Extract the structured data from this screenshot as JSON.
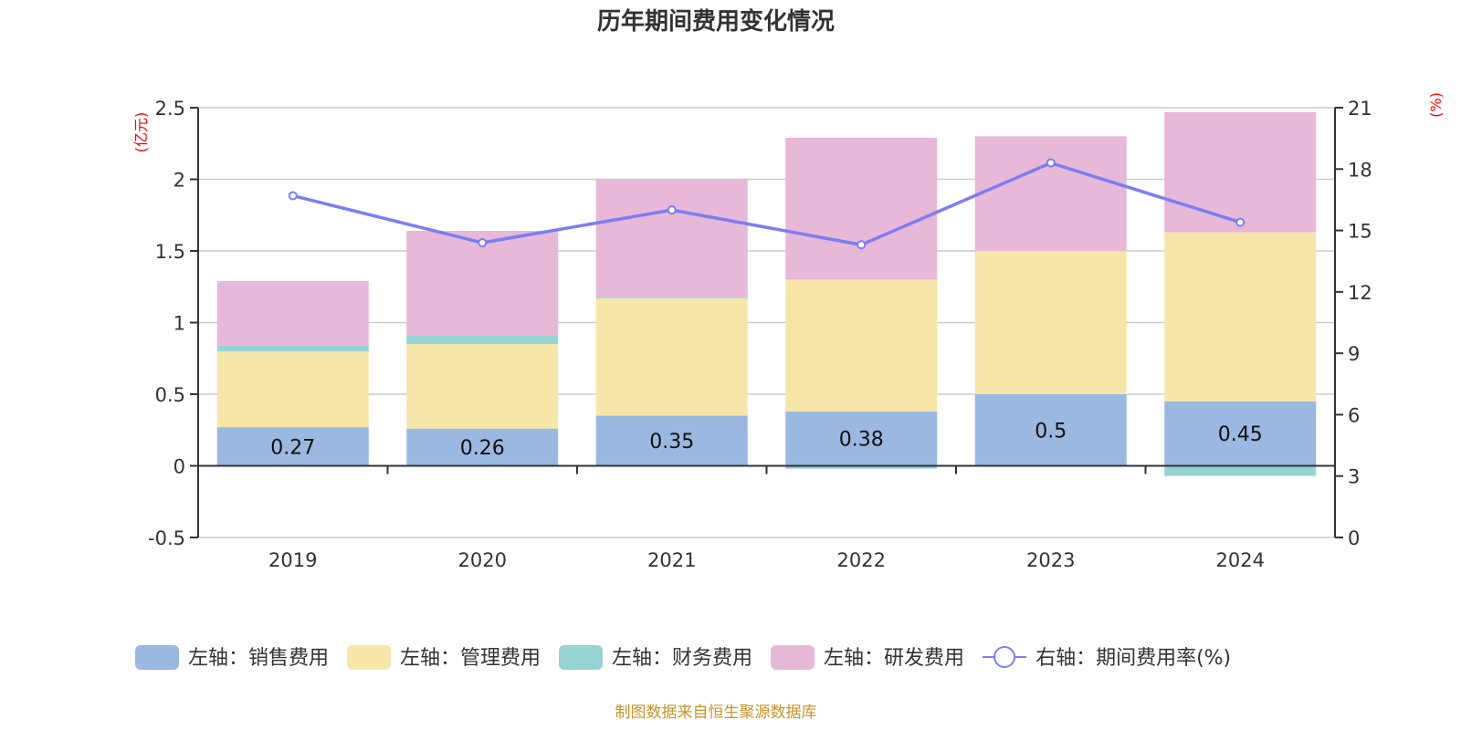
{
  "chart_data": {
    "type": "bar",
    "title": "历年期间费用变化情况",
    "categories": [
      "2019",
      "2020",
      "2021",
      "2022",
      "2023",
      "2024"
    ],
    "left_axis": {
      "unit_label": "(亿元)",
      "ylim": [
        -0.5,
        2.5
      ],
      "ticks": [
        -0.5,
        0,
        0.5,
        1,
        1.5,
        2,
        2.5
      ],
      "tick_labels": [
        "-0.5",
        "0",
        "0.5",
        "1",
        "1.5",
        "2",
        "2.5"
      ]
    },
    "right_axis": {
      "unit_label": "(%)",
      "ylim": [
        0,
        21
      ],
      "ticks": [
        0,
        3,
        6,
        9,
        12,
        15,
        18,
        21
      ],
      "tick_labels": [
        "0",
        "3",
        "6",
        "9",
        "12",
        "15",
        "18",
        "21"
      ]
    },
    "grid": true,
    "stacked": true,
    "series": [
      {
        "name": "左轴：销售费用",
        "type": "bar",
        "axis": "left",
        "color": "#9bb8e1",
        "values": [
          0.27,
          0.26,
          0.35,
          0.38,
          0.5,
          0.45
        ],
        "labels": [
          "0.27",
          "0.26",
          "0.35",
          "0.38",
          "0.5",
          "0.45"
        ]
      },
      {
        "name": "左轴：管理费用",
        "type": "bar",
        "axis": "left",
        "color": "#f7e6a9",
        "values": [
          0.53,
          0.59,
          0.82,
          0.92,
          1.0,
          1.18
        ]
      },
      {
        "name": "左轴：财务费用",
        "type": "bar",
        "axis": "left",
        "color": "#96d3d3",
        "values": [
          0.04,
          0.06,
          0.01,
          -0.02,
          -0.005,
          -0.07
        ]
      },
      {
        "name": "左轴：研发费用",
        "type": "bar",
        "axis": "left",
        "color": "#e7b8d8",
        "values": [
          0.45,
          0.73,
          0.82,
          0.99,
          0.8,
          0.84
        ]
      },
      {
        "name": "右轴：期间费用率(%)",
        "type": "line",
        "axis": "right",
        "color": "#7b7ef0",
        "values": [
          16.7,
          14.4,
          16.0,
          14.3,
          18.3,
          15.4
        ]
      }
    ],
    "legend_position": "bottom",
    "source_note": "制图数据来自恒生聚源数据库"
  }
}
